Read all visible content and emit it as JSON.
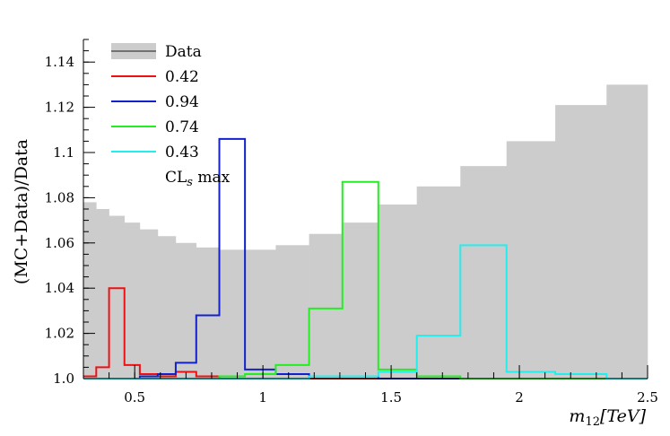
{
  "chart_data": {
    "type": "line",
    "title": "",
    "xlabel": "m12 [TeV]",
    "xlabel_parts": {
      "main": "m",
      "sub": "12",
      "unit": "[TeV]"
    },
    "ylabel": "(MC+Data)/Data",
    "xlim": [
      0.3,
      2.5
    ],
    "ylim": [
      1.0,
      1.15
    ],
    "x_ticks": [
      0.5,
      1,
      1.5,
      2,
      2.5
    ],
    "x_tick_labels": [
      "0.5",
      "1",
      "1.5",
      "2",
      "2.5"
    ],
    "y_ticks": [
      1.0,
      1.02,
      1.04,
      1.06,
      1.08,
      1.1,
      1.12,
      1.14
    ],
    "y_tick_labels": [
      "1.0",
      "1.02",
      "1.04",
      "1.06",
      "1.08",
      "1.1",
      "1.12",
      "1.14"
    ],
    "bin_edges": [
      0.3,
      0.35,
      0.4,
      0.46,
      0.52,
      0.59,
      0.66,
      0.74,
      0.83,
      0.93,
      1.05,
      1.18,
      1.31,
      1.45,
      1.6,
      1.77,
      1.95,
      2.14,
      2.34,
      2.5
    ],
    "data_band": {
      "name": "Data",
      "color": "#cccccc",
      "values": [
        1.078,
        1.075,
        1.072,
        1.069,
        1.066,
        1.063,
        1.06,
        1.058,
        1.057,
        1.057,
        1.059,
        1.064,
        1.069,
        1.077,
        1.085,
        1.094,
        1.105,
        1.121,
        1.13
      ]
    },
    "series": [
      {
        "name": "0.42",
        "color": "#ee1111",
        "values": [
          1.001,
          1.005,
          1.04,
          1.006,
          1.002,
          1.001,
          1.003,
          1.001,
          1.0,
          1.0,
          1.0,
          1.0,
          1.0,
          1.0,
          1.0,
          1.0,
          1.0,
          1.0,
          1.0
        ]
      },
      {
        "name": "0.94",
        "color": "#1122cc",
        "values": [
          1.0,
          1.0,
          1.0,
          1.0,
          1.001,
          1.002,
          1.007,
          1.028,
          1.106,
          1.004,
          1.002,
          1.001,
          1.001,
          1.0,
          1.0,
          1.0,
          1.0,
          1.0,
          1.0
        ]
      },
      {
        "name": "0.74",
        "color": "#22ee22",
        "values": [
          1.0,
          1.0,
          1.0,
          1.0,
          1.0,
          1.0,
          1.0,
          1.0,
          1.001,
          1.002,
          1.006,
          1.031,
          1.087,
          1.004,
          1.001,
          1.0,
          1.0,
          1.0,
          1.0
        ]
      },
      {
        "name": "0.43",
        "color": "#22eeee",
        "values": [
          1.0,
          1.0,
          1.0,
          1.0,
          1.0,
          1.0,
          1.0,
          1.0,
          1.0,
          1.0,
          1.0,
          1.001,
          1.001,
          1.003,
          1.019,
          1.059,
          1.003,
          1.002,
          1.0
        ]
      }
    ],
    "legend": {
      "position": "top-left",
      "entries": [
        "Data",
        "0.42",
        "0.94",
        "0.74",
        "0.43"
      ],
      "footer_main": "CL",
      "footer_sub": "s",
      "footer_tail": " max"
    },
    "grid": false
  }
}
